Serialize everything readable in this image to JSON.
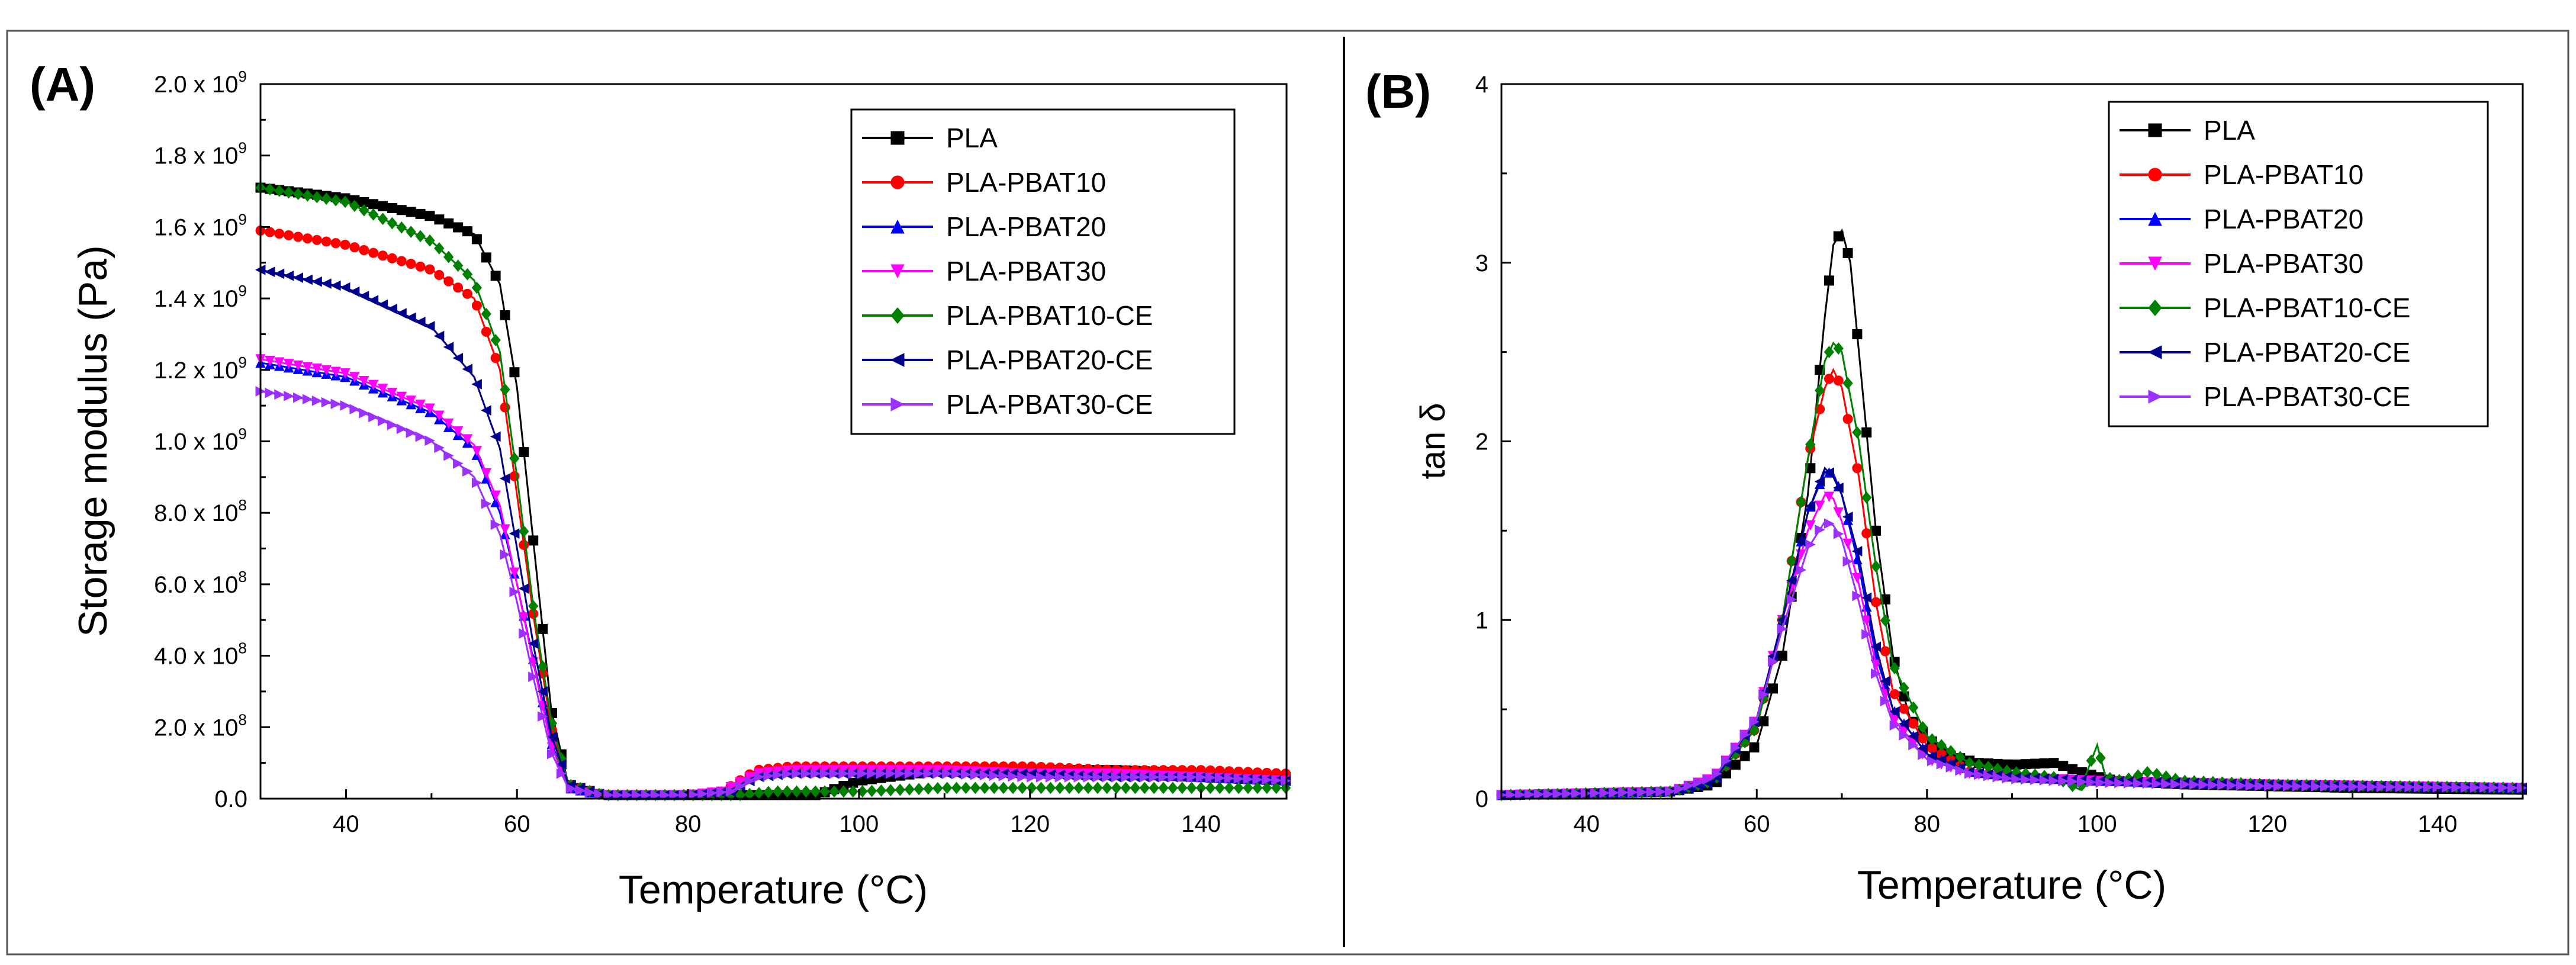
{
  "chart_data": [
    {
      "panel": "(A)",
      "type": "line",
      "xlabel": "Temperature (°C)",
      "ylabel": "Storage modulus (Pa)",
      "xlim": [
        30,
        150
      ],
      "ylim": [
        0,
        2.0
      ],
      "xticks": [
        40,
        60,
        80,
        100,
        120,
        140
      ],
      "yticks": [
        {
          "v": 0.0,
          "m": "0.0",
          "e": ""
        },
        {
          "v": 0.2,
          "m": "2.0 x 10",
          "e": "8"
        },
        {
          "v": 0.4,
          "m": "4.0 x 10",
          "e": "8"
        },
        {
          "v": 0.6,
          "m": "6.0 x 10",
          "e": "8"
        },
        {
          "v": 0.8,
          "m": "8.0 x 10",
          "e": "8"
        },
        {
          "v": 1.0,
          "m": "1.0 x 10",
          "e": "9"
        },
        {
          "v": 1.2,
          "m": "1.2 x 10",
          "e": "9"
        },
        {
          "v": 1.4,
          "m": "1.4 x 10",
          "e": "9"
        },
        {
          "v": 1.6,
          "m": "1.6 x 10",
          "e": "9"
        },
        {
          "v": 1.8,
          "m": "1.8 x 10",
          "e": "9"
        },
        {
          "v": 2.0,
          "m": "2.0 x 10",
          "e": "9"
        }
      ],
      "y_unit_note": "values in units of 10^9 Pa",
      "legend_position": "top-right",
      "grid": false,
      "series": [
        {
          "name": "PLA",
          "color": "#000000",
          "marker": "square",
          "x": [
            30,
            40,
            50,
            55,
            58,
            60,
            62,
            64,
            66,
            70,
            80,
            85,
            90,
            95,
            100,
            110,
            120,
            130,
            140,
            150
          ],
          "y": [
            1.71,
            1.68,
            1.63,
            1.58,
            1.44,
            1.15,
            0.7,
            0.25,
            0.04,
            0.01,
            0.01,
            0.01,
            0.01,
            0.01,
            0.05,
            0.08,
            0.08,
            0.08,
            0.07,
            0.06
          ]
        },
        {
          "name": "PLA-PBAT10",
          "color": "#ff0000",
          "marker": "circle",
          "x": [
            30,
            40,
            50,
            55,
            58,
            60,
            62,
            64,
            66,
            70,
            80,
            84,
            88,
            92,
            100,
            110,
            120,
            130,
            140,
            150
          ],
          "y": [
            1.59,
            1.55,
            1.48,
            1.4,
            1.2,
            0.85,
            0.5,
            0.2,
            0.04,
            0.01,
            0.01,
            0.02,
            0.08,
            0.09,
            0.09,
            0.09,
            0.09,
            0.08,
            0.08,
            0.07
          ]
        },
        {
          "name": "PLA-PBAT20",
          "color": "#0000ff",
          "marker": "triangle-up",
          "x": [
            30,
            40,
            50,
            55,
            58,
            60,
            62,
            64,
            66,
            70,
            80,
            84,
            88,
            92,
            100,
            110,
            120,
            130,
            140,
            150
          ],
          "y": [
            1.22,
            1.18,
            1.08,
            0.98,
            0.8,
            0.6,
            0.38,
            0.16,
            0.03,
            0.01,
            0.01,
            0.02,
            0.07,
            0.08,
            0.08,
            0.08,
            0.07,
            0.07,
            0.06,
            0.05
          ]
        },
        {
          "name": "PLA-PBAT30",
          "color": "#ff00ff",
          "marker": "triangle-down",
          "x": [
            30,
            40,
            50,
            55,
            58,
            60,
            62,
            64,
            66,
            70,
            80,
            84,
            88,
            92,
            100,
            110,
            120,
            130,
            140,
            150
          ],
          "y": [
            1.23,
            1.19,
            1.09,
            0.99,
            0.82,
            0.6,
            0.37,
            0.15,
            0.03,
            0.01,
            0.01,
            0.02,
            0.07,
            0.08,
            0.08,
            0.08,
            0.07,
            0.07,
            0.06,
            0.05
          ]
        },
        {
          "name": "PLA-PBAT10-CE",
          "color": "#008000",
          "marker": "diamond",
          "x": [
            30,
            40,
            50,
            55,
            58,
            60,
            62,
            64,
            66,
            70,
            80,
            86,
            90,
            95,
            100,
            110,
            120,
            130,
            140,
            150
          ],
          "y": [
            1.71,
            1.67,
            1.56,
            1.45,
            1.25,
            0.9,
            0.52,
            0.22,
            0.04,
            0.01,
            0.01,
            0.01,
            0.02,
            0.02,
            0.02,
            0.03,
            0.03,
            0.03,
            0.03,
            0.03
          ]
        },
        {
          "name": "PLA-PBAT20-CE",
          "color": "#00008b",
          "marker": "triangle-left",
          "x": [
            30,
            40,
            50,
            55,
            58,
            60,
            62,
            64,
            66,
            70,
            80,
            85,
            88,
            92,
            100,
            110,
            120,
            130,
            140,
            150
          ],
          "y": [
            1.48,
            1.43,
            1.32,
            1.18,
            0.98,
            0.7,
            0.42,
            0.18,
            0.04,
            0.01,
            0.01,
            0.02,
            0.06,
            0.07,
            0.07,
            0.07,
            0.07,
            0.06,
            0.06,
            0.05
          ]
        },
        {
          "name": "PLA-PBAT30-CE",
          "color": "#9b30ff",
          "marker": "triangle-right",
          "x": [
            30,
            40,
            50,
            55,
            58,
            60,
            62,
            64,
            66,
            70,
            80,
            85,
            88,
            92,
            100,
            110,
            120,
            130,
            140,
            150
          ],
          "y": [
            1.14,
            1.1,
            1.0,
            0.9,
            0.74,
            0.55,
            0.33,
            0.13,
            0.03,
            0.01,
            0.01,
            0.02,
            0.06,
            0.07,
            0.07,
            0.07,
            0.06,
            0.06,
            0.06,
            0.05
          ]
        }
      ]
    },
    {
      "panel": "(B)",
      "type": "line",
      "xlabel": "Temperature (°C)",
      "ylabel": "tan δ",
      "xlim": [
        30,
        150
      ],
      "ylim": [
        0,
        4
      ],
      "xticks": [
        40,
        60,
        80,
        100,
        120,
        140
      ],
      "yticks": [
        {
          "v": 0,
          "m": "0",
          "e": ""
        },
        {
          "v": 1,
          "m": "1",
          "e": ""
        },
        {
          "v": 2,
          "m": "2",
          "e": ""
        },
        {
          "v": 3,
          "m": "3",
          "e": ""
        },
        {
          "v": 4,
          "m": "4",
          "e": ""
        }
      ],
      "legend_position": "top-right",
      "grid": false,
      "series": [
        {
          "name": "PLA",
          "color": "#000000",
          "marker": "square",
          "x": [
            30,
            50,
            55,
            60,
            63,
            66,
            68,
            69,
            70,
            71,
            72,
            74,
            76,
            78,
            82,
            86,
            90,
            95,
            98,
            102,
            110,
            130,
            150
          ],
          "y": [
            0.02,
            0.04,
            0.08,
            0.3,
            0.8,
            1.7,
            2.7,
            3.1,
            3.18,
            3.0,
            2.5,
            1.5,
            0.8,
            0.45,
            0.25,
            0.2,
            0.19,
            0.2,
            0.15,
            0.1,
            0.08,
            0.06,
            0.05
          ]
        },
        {
          "name": "PLA-PBAT10",
          "color": "#ff0000",
          "marker": "circle",
          "x": [
            30,
            50,
            55,
            60,
            63,
            66,
            68,
            69,
            70,
            72,
            74,
            76,
            80,
            85,
            90,
            100,
            120,
            150
          ],
          "y": [
            0.02,
            0.04,
            0.1,
            0.4,
            1.0,
            1.9,
            2.3,
            2.4,
            2.3,
            1.8,
            1.1,
            0.6,
            0.3,
            0.15,
            0.12,
            0.1,
            0.08,
            0.06
          ]
        },
        {
          "name": "PLA-PBAT20",
          "color": "#0000ff",
          "marker": "triangle-up",
          "x": [
            30,
            50,
            55,
            60,
            63,
            66,
            68,
            69,
            70,
            72,
            74,
            76,
            80,
            85,
            90,
            100,
            120,
            150
          ],
          "y": [
            0.02,
            0.04,
            0.1,
            0.45,
            1.0,
            1.6,
            1.83,
            1.82,
            1.7,
            1.3,
            0.8,
            0.5,
            0.25,
            0.15,
            0.12,
            0.1,
            0.08,
            0.06
          ]
        },
        {
          "name": "PLA-PBAT30",
          "color": "#ff00ff",
          "marker": "triangle-down",
          "x": [
            30,
            50,
            55,
            60,
            63,
            66,
            68,
            69,
            70,
            72,
            74,
            76,
            80,
            85,
            90,
            100,
            120,
            150
          ],
          "y": [
            0.02,
            0.04,
            0.12,
            0.45,
            1.0,
            1.5,
            1.7,
            1.68,
            1.55,
            1.2,
            0.75,
            0.45,
            0.22,
            0.14,
            0.12,
            0.1,
            0.08,
            0.06
          ]
        },
        {
          "name": "PLA-PBAT10-CE",
          "color": "#008000",
          "marker": "diamond",
          "x": [
            30,
            50,
            55,
            60,
            63,
            66,
            68,
            69,
            70,
            72,
            74,
            76,
            80,
            85,
            90,
            95,
            98,
            100,
            101,
            103,
            106,
            110,
            120,
            150
          ],
          "y": [
            0.02,
            0.04,
            0.1,
            0.4,
            1.0,
            1.9,
            2.45,
            2.55,
            2.5,
            2.0,
            1.3,
            0.75,
            0.35,
            0.2,
            0.15,
            0.12,
            0.05,
            0.3,
            0.12,
            0.1,
            0.15,
            0.1,
            0.08,
            0.06
          ]
        },
        {
          "name": "PLA-PBAT20-CE",
          "color": "#00008b",
          "marker": "triangle-left",
          "x": [
            30,
            50,
            55,
            60,
            63,
            66,
            68,
            69,
            70,
            72,
            74,
            76,
            80,
            85,
            90,
            100,
            120,
            150
          ],
          "y": [
            0.02,
            0.04,
            0.1,
            0.45,
            1.0,
            1.6,
            1.85,
            1.8,
            1.7,
            1.35,
            0.85,
            0.5,
            0.25,
            0.15,
            0.12,
            0.1,
            0.08,
            0.06
          ]
        },
        {
          "name": "PLA-PBAT30-CE",
          "color": "#9b30ff",
          "marker": "triangle-right",
          "x": [
            30,
            50,
            55,
            60,
            63,
            66,
            68,
            69,
            70,
            72,
            74,
            76,
            80,
            85,
            90,
            100,
            120,
            150
          ],
          "y": [
            0.02,
            0.04,
            0.12,
            0.45,
            0.95,
            1.4,
            1.55,
            1.53,
            1.45,
            1.1,
            0.7,
            0.42,
            0.22,
            0.14,
            0.11,
            0.09,
            0.07,
            0.06
          ]
        }
      ]
    }
  ]
}
